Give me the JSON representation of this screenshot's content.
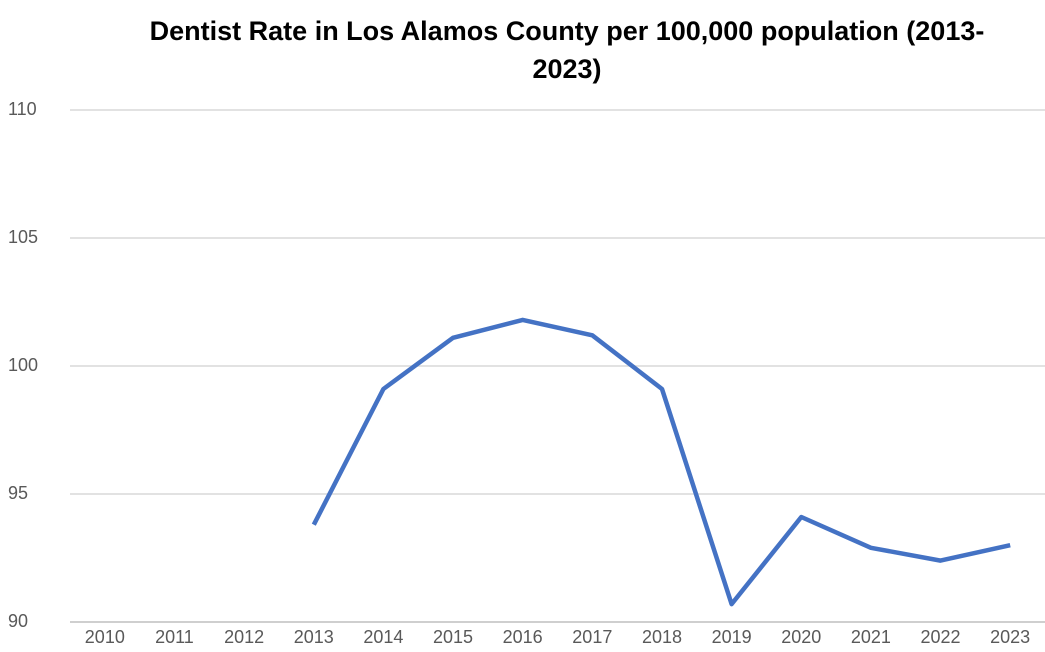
{
  "chart_data": {
    "type": "line",
    "title": "Dentist Rate in Los Alamos County per 100,000 population (2013-2023)",
    "categories": [
      "2010",
      "2011",
      "2012",
      "2013",
      "2014",
      "2015",
      "2016",
      "2017",
      "2018",
      "2019",
      "2020",
      "2021",
      "2022",
      "2023"
    ],
    "series": [
      {
        "name": "Dentist Rate",
        "color": "#4472c4",
        "values": [
          null,
          null,
          null,
          93.8,
          99.1,
          101.1,
          101.8,
          101.2,
          99.1,
          90.7,
          94.1,
          92.9,
          92.4,
          93.0
        ]
      }
    ],
    "ylim": [
      90,
      110
    ],
    "yticks": [
      90,
      95,
      100,
      105,
      110
    ],
    "grid": true
  }
}
